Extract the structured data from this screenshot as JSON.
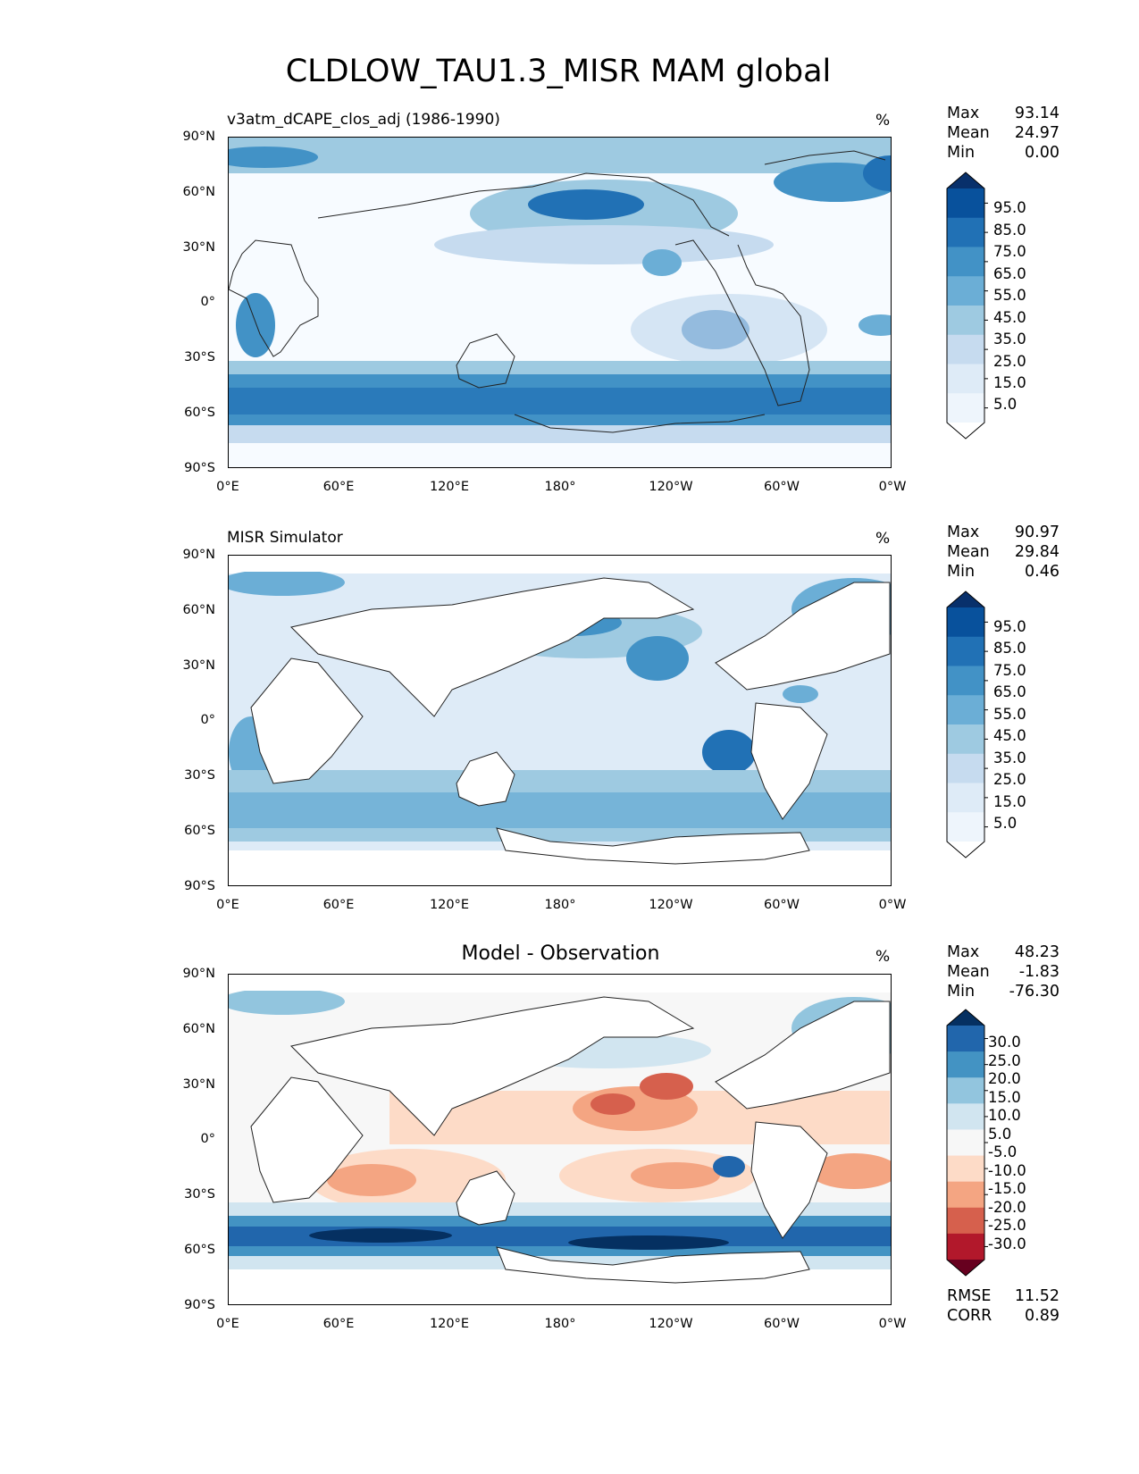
{
  "title": "CLDLOW_TAU1.3_MISR MAM global",
  "axes": {
    "lat_labels": [
      "90°N",
      "60°N",
      "30°N",
      "0°",
      "30°S",
      "60°S",
      "90°S"
    ],
    "lon_labels": [
      "0°E",
      "60°E",
      "120°E",
      "180°",
      "120°W",
      "60°W",
      "0°W"
    ]
  },
  "panels": [
    {
      "id": "model",
      "title": "v3atm_dCAPE_clos_adj (1986-1990)",
      "units": "%",
      "stats": [
        {
          "label": "Max",
          "value": "93.14"
        },
        {
          "label": "Mean",
          "value": "24.97"
        },
        {
          "label": "Min",
          "value": "0.00"
        }
      ],
      "colorbar": {
        "labels": [
          "95.0",
          "85.0",
          "75.0",
          "65.0",
          "55.0",
          "45.0",
          "35.0",
          "25.0",
          "15.0",
          "5.0"
        ],
        "colors": [
          "#08306b",
          "#08519c",
          "#2171b5",
          "#4292c6",
          "#6baed6",
          "#9ecae1",
          "#c6dbef",
          "#deebf7",
          "#eef5fc",
          "#ffffff"
        ]
      }
    },
    {
      "id": "obs",
      "title": "MISR Simulator",
      "units": "%",
      "stats": [
        {
          "label": "Max",
          "value": "90.97"
        },
        {
          "label": "Mean",
          "value": "29.84"
        },
        {
          "label": "Min",
          "value": "0.46"
        }
      ],
      "colorbar": {
        "labels": [
          "95.0",
          "85.0",
          "75.0",
          "65.0",
          "55.0",
          "45.0",
          "35.0",
          "25.0",
          "15.0",
          "5.0"
        ],
        "colors": [
          "#08306b",
          "#08519c",
          "#2171b5",
          "#4292c6",
          "#6baed6",
          "#9ecae1",
          "#c6dbef",
          "#deebf7",
          "#eef5fc",
          "#ffffff"
        ]
      }
    },
    {
      "id": "diff",
      "title": "Model - Observation",
      "units": "%",
      "stats": [
        {
          "label": "Max",
          "value": "48.23"
        },
        {
          "label": "Mean",
          "value": "-1.83"
        },
        {
          "label": "Min",
          "value": "-76.30"
        }
      ],
      "bottom_stats": [
        {
          "label": "RMSE",
          "value": "11.52"
        },
        {
          "label": "CORR",
          "value": "0.89"
        }
      ],
      "colorbar": {
        "labels": [
          "30.0",
          "25.0",
          "20.0",
          "15.0",
          "10.0",
          "5.0",
          "-5.0",
          "-10.0",
          "-15.0",
          "-20.0",
          "-25.0",
          "-30.0"
        ],
        "colors": [
          "#053061",
          "#2166ac",
          "#4393c3",
          "#92c5de",
          "#d1e5f0",
          "#f7f7f7",
          "#fddbc7",
          "#f4a582",
          "#d6604d",
          "#b2182b",
          "#67001f"
        ]
      }
    }
  ]
}
